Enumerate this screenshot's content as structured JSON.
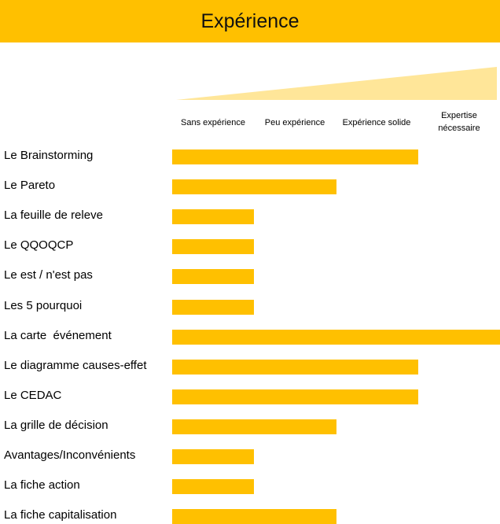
{
  "chart_data": {
    "type": "bar",
    "title": "Expérience",
    "levels": [
      "Sans expérience",
      "Peu expérience",
      "Expérience solide",
      "Expertise nécessaire"
    ],
    "categories": [
      "Le Brainstorming",
      "Le Pareto",
      "La feuille de releve",
      "Le QQOQCP",
      "Le est / n'est pas",
      "Les 5 pourquoi",
      "La carte  événement",
      "Le diagramme causes-effet",
      "Le CEDAC",
      "La grille de décision",
      "Avantages/Inconvénients",
      "La fiche action",
      "La fiche capitalisation"
    ],
    "values": [
      3,
      2,
      1,
      1,
      1,
      1,
      4,
      3,
      3,
      2,
      1,
      1,
      2
    ],
    "xlim": [
      0,
      4
    ],
    "orientation": "horizontal",
    "legend": "none",
    "grid": false
  },
  "colors": {
    "bar": "#FFC000",
    "title_bg": "#FFC000",
    "wedge": "#FFE699"
  }
}
